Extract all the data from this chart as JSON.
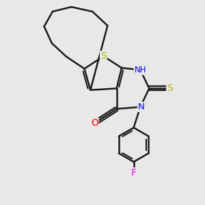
{
  "bg_color": "#e8e8e8",
  "bond_color": "#1a1a1a",
  "bond_width": 1.8,
  "atom_colors": {
    "S": "#b8b800",
    "N": "#0000ee",
    "O": "#ee0000",
    "F": "#ee00ee",
    "H": "#008888",
    "C": "#1a1a1a"
  },
  "font_size": 8.5,
  "figsize": [
    3.0,
    3.0
  ],
  "dpi": 100
}
